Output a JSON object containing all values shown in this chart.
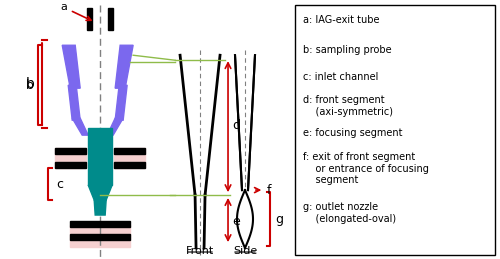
{
  "bg_color": "#ffffff",
  "legend_items": [
    "a: IAG-exit tube",
    "b: sampling probe",
    "c: inlet channel",
    "d: front segment\n    (axi-symmetric)",
    "e: focusing segment",
    "f: exit of front segment\n    or entrance of focusing\n    segment",
    "g: outlet nozzle\n    (elongated-oval)"
  ],
  "purple_color": "#7B68EE",
  "teal_color": "#008B8B",
  "red_color": "#CC0000",
  "green_color": "#8FBC4A",
  "black_color": "#000000",
  "pink_bg": "#F5D0D0"
}
